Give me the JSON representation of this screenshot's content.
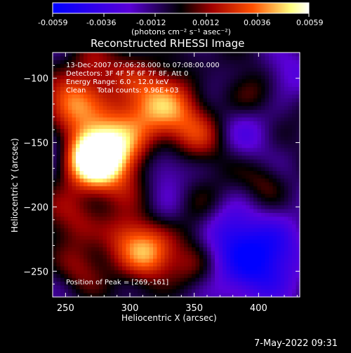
{
  "plot_title": "Reconstructed RHESSI Image",
  "annotation_lines": [
    "13-Dec-2007 07:06:28.000 to 07:08:00.000",
    "Detectors: 3F 4F 5F 6F 7F 8F, Att 0",
    "Energy Range: 6.0 - 12.0 keV",
    "Clean     Total counts: 9.96E+03"
  ],
  "peak_text": "Position of Peak = [269,-161]",
  "footer_timestamp": "7-May-2022 09:31",
  "colorbar": {
    "tick_labels": [
      "-0.0059",
      "-0.0036",
      "-0.0012",
      "0.0012",
      "0.0036",
      "0.0059"
    ],
    "unit_label": "(photons cm⁻² s⁻¹ asec⁻²)",
    "colors": [
      "#0000ff",
      "#5a00d8",
      "#000000",
      "#a00000",
      "#ff5000",
      "#ffff80",
      "#ffffff"
    ]
  },
  "chart_data": {
    "type": "heatmap",
    "title": "Reconstructed RHESSI Image",
    "xlabel": "Heliocentric X (arcsec)",
    "ylabel": "Heliocentric Y (arcsec)",
    "xlim": [
      240,
      432
    ],
    "ylim": [
      -270,
      -80
    ],
    "x_ticks": [
      250,
      300,
      350,
      400
    ],
    "y_ticks": [
      -100,
      -150,
      -200,
      -250
    ],
    "value_range": [
      -0.0059,
      0.0059
    ],
    "peak": [
      269,
      -161
    ],
    "blobs": [
      {
        "x": 269,
        "y": -161,
        "v": 0.0059,
        "s": 16
      },
      {
        "x": 285,
        "y": -160,
        "v": 0.0042,
        "s": 20
      },
      {
        "x": 253,
        "y": -118,
        "v": 0.004,
        "s": 14
      },
      {
        "x": 300,
        "y": -128,
        "v": 0.0026,
        "s": 26
      },
      {
        "x": 330,
        "y": -118,
        "v": 0.003,
        "s": 20
      },
      {
        "x": 355,
        "y": -142,
        "v": 0.002,
        "s": 16
      },
      {
        "x": 315,
        "y": -238,
        "v": 0.0046,
        "s": 14
      },
      {
        "x": 296,
        "y": -222,
        "v": 0.0032,
        "s": 14
      },
      {
        "x": 255,
        "y": -206,
        "v": 0.0022,
        "s": 15
      },
      {
        "x": 355,
        "y": -205,
        "v": 0.0018,
        "s": 15
      },
      {
        "x": 345,
        "y": -248,
        "v": 0.0016,
        "s": 14
      },
      {
        "x": 262,
        "y": -248,
        "v": 0.0018,
        "s": 13
      },
      {
        "x": 395,
        "y": -110,
        "v": 0.0014,
        "s": 14
      },
      {
        "x": 405,
        "y": -180,
        "v": 0.0014,
        "s": 12
      },
      {
        "x": 270,
        "y": -92,
        "v": 0.002,
        "s": 12
      },
      {
        "x": 390,
        "y": -250,
        "v": -0.0036,
        "s": 22
      },
      {
        "x": 415,
        "y": -230,
        "v": -0.0028,
        "s": 18
      },
      {
        "x": 378,
        "y": -215,
        "v": -0.0024,
        "s": 16
      },
      {
        "x": 325,
        "y": -168,
        "v": -0.002,
        "s": 14
      },
      {
        "x": 390,
        "y": -140,
        "v": -0.0016,
        "s": 16
      },
      {
        "x": 420,
        "y": -98,
        "v": -0.0018,
        "s": 14
      },
      {
        "x": 245,
        "y": -150,
        "v": -0.0024,
        "s": 12
      },
      {
        "x": 330,
        "y": -205,
        "v": -0.0014,
        "s": 12
      },
      {
        "x": 360,
        "y": -100,
        "v": -0.001,
        "s": 12
      }
    ]
  }
}
